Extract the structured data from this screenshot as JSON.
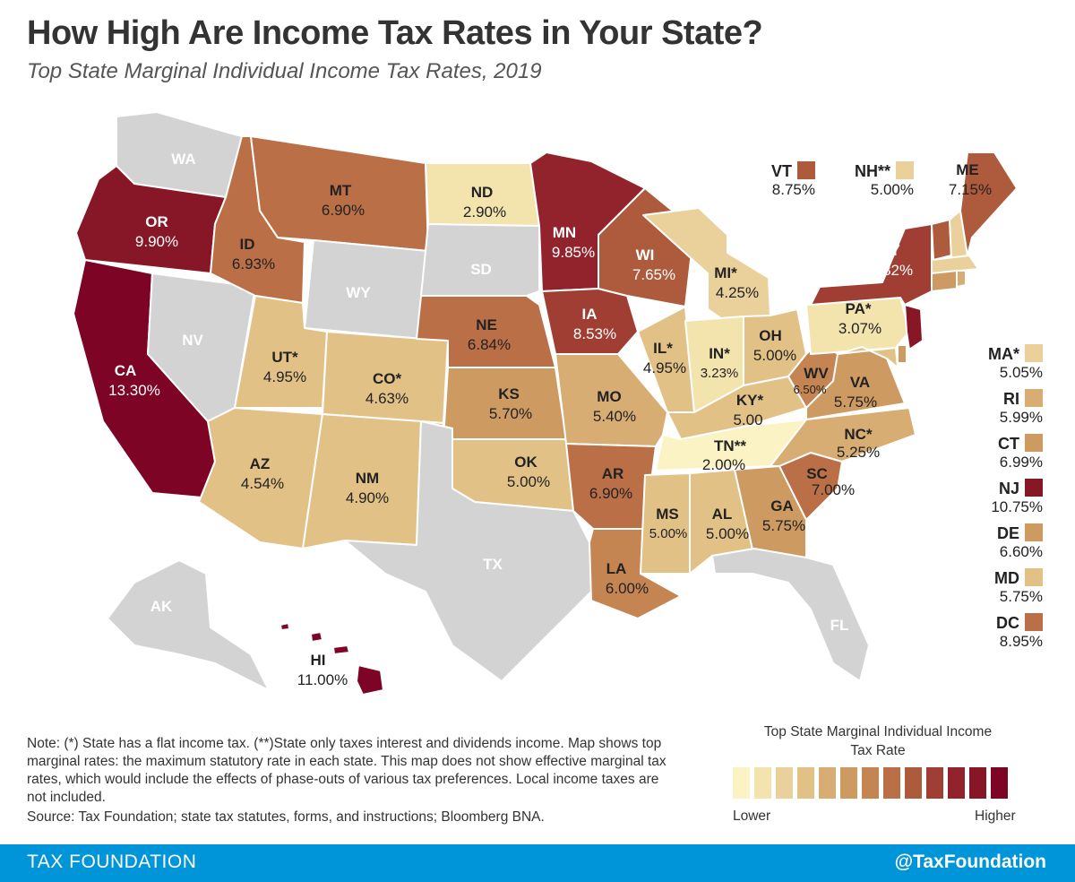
{
  "header": {
    "title": "How High Are Income Tax Rates in Your State?",
    "subtitle": "Top State Marginal Individual Income Tax Rates, 2019"
  },
  "colors": {
    "none": "#d3d3d3",
    "scale": [
      "#fbf3c4",
      "#f3e3ad",
      "#ead09a",
      "#e2c187",
      "#d8ad73",
      "#cd9a62",
      "#c48553",
      "#ba6f47",
      "#ad5a3d",
      "#a03e34",
      "#92232d",
      "#871626",
      "#7d0425"
    ]
  },
  "states": {
    "WA": {
      "code": "WA",
      "rate": ""
    },
    "OR": {
      "code": "OR",
      "rate": "9.90%"
    },
    "CA": {
      "code": "CA",
      "rate": "13.30%"
    },
    "NV": {
      "code": "NV",
      "rate": ""
    },
    "ID": {
      "code": "ID",
      "rate": "6.93%"
    },
    "MT": {
      "code": "MT",
      "rate": "6.90%"
    },
    "WY": {
      "code": "WY",
      "rate": ""
    },
    "UT": {
      "code": "UT*",
      "rate": "4.95%"
    },
    "AZ": {
      "code": "AZ",
      "rate": "4.54%"
    },
    "CO": {
      "code": "CO*",
      "rate": "4.63%"
    },
    "NM": {
      "code": "NM",
      "rate": "4.90%"
    },
    "ND": {
      "code": "ND",
      "rate": "2.90%"
    },
    "SD": {
      "code": "SD",
      "rate": ""
    },
    "NE": {
      "code": "NE",
      "rate": "6.84%"
    },
    "KS": {
      "code": "KS",
      "rate": "5.70%"
    },
    "OK": {
      "code": "OK",
      "rate": "5.00%"
    },
    "TX": {
      "code": "TX",
      "rate": ""
    },
    "MN": {
      "code": "MN",
      "rate": "9.85%"
    },
    "IA": {
      "code": "IA",
      "rate": "8.53%"
    },
    "MO": {
      "code": "MO",
      "rate": "5.40%"
    },
    "AR": {
      "code": "AR",
      "rate": "6.90%"
    },
    "LA": {
      "code": "LA",
      "rate": "6.00%"
    },
    "WI": {
      "code": "WI",
      "rate": "7.65%"
    },
    "IL": {
      "code": "IL*",
      "rate": "4.95%"
    },
    "MI": {
      "code": "MI*",
      "rate": "4.25%"
    },
    "IN": {
      "code": "IN*",
      "rate": "3.23%"
    },
    "OH": {
      "code": "OH",
      "rate": "5.00%"
    },
    "KY": {
      "code": "KY*",
      "rate": "5.00"
    },
    "TN": {
      "code": "TN**",
      "rate": "2.00%"
    },
    "MS": {
      "code": "MS",
      "rate": "5.00%"
    },
    "AL": {
      "code": "AL",
      "rate": "5.00%"
    },
    "GA": {
      "code": "GA",
      "rate": "5.75%"
    },
    "FL": {
      "code": "FL",
      "rate": ""
    },
    "SC": {
      "code": "SC",
      "rate": "7.00%"
    },
    "NC": {
      "code": "NC*",
      "rate": "5.25%"
    },
    "VA": {
      "code": "VA",
      "rate": "5.75%"
    },
    "WV": {
      "code": "WV",
      "rate": "6.50%"
    },
    "PA": {
      "code": "PA*",
      "rate": "3.07%"
    },
    "NY": {
      "code": "NY",
      "rate": "8.82%"
    },
    "ME": {
      "code": "ME",
      "rate": "7.15%"
    },
    "AK": {
      "code": "AK",
      "rate": ""
    },
    "HI": {
      "code": "HI",
      "rate": "11.00%"
    }
  },
  "callouts_top": [
    {
      "code": "VT",
      "rate": "8.75%",
      "color": "#ad5a3d"
    },
    {
      "code": "NH**",
      "rate": "5.00%",
      "color": "#ead09a"
    }
  ],
  "callouts_side": [
    {
      "code": "MA*",
      "rate": "5.05%",
      "color": "#ead09a"
    },
    {
      "code": "RI",
      "rate": "5.99%",
      "color": "#d8ad73"
    },
    {
      "code": "CT",
      "rate": "6.99%",
      "color": "#cd9a62"
    },
    {
      "code": "NJ",
      "rate": "10.75%",
      "color": "#871626"
    },
    {
      "code": "DE",
      "rate": "6.60%",
      "color": "#cd9a62"
    },
    {
      "code": "MD",
      "rate": "5.75%",
      "color": "#e2c187"
    },
    {
      "code": "DC",
      "rate": "8.95%",
      "color": "#ba6f47"
    }
  ],
  "note": "Note: (*) State has a flat income tax. (**)State only taxes interest and dividends income. Map shows top marginal rates: the maximum statutory rate in each state. This map does not show effective marginal tax rates, which would include the effects of phase-outs of various tax preferences. Local income taxes are not included.",
  "source": "Source: Tax Foundation; state tax statutes, forms, and instructions; Bloomberg BNA.",
  "legend": {
    "title": "Top State Marginal Individual Income Tax Rate",
    "low": "Lower",
    "high": "Higher"
  },
  "footer": {
    "left": "TAX FOUNDATION",
    "right": "@TaxFoundation"
  }
}
